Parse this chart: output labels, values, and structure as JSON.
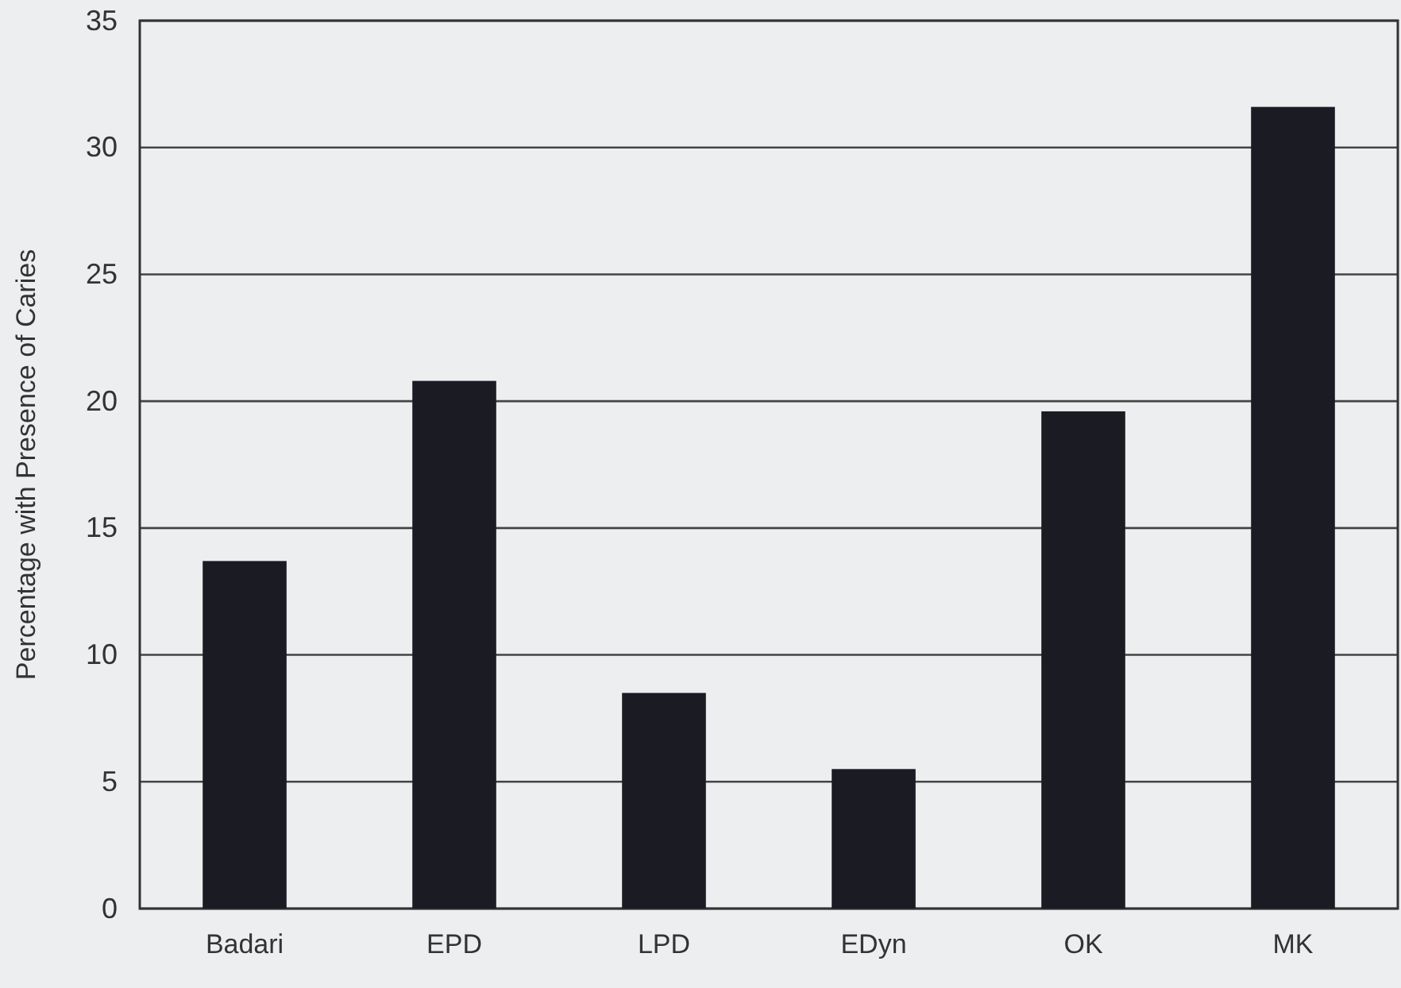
{
  "chart_data": {
    "type": "bar",
    "ylabel": "Percentage with Presence of Caries",
    "categories": [
      "Badari",
      "EPD",
      "LPD",
      "EDyn",
      "OK",
      "MK"
    ],
    "values": [
      13.7,
      20.8,
      8.5,
      5.5,
      19.6,
      31.6
    ],
    "color": "#1b1b24",
    "ylim": [
      0,
      35
    ],
    "yticks": [
      0,
      5,
      10,
      15,
      20,
      25,
      30,
      35
    ],
    "grid": "y"
  }
}
